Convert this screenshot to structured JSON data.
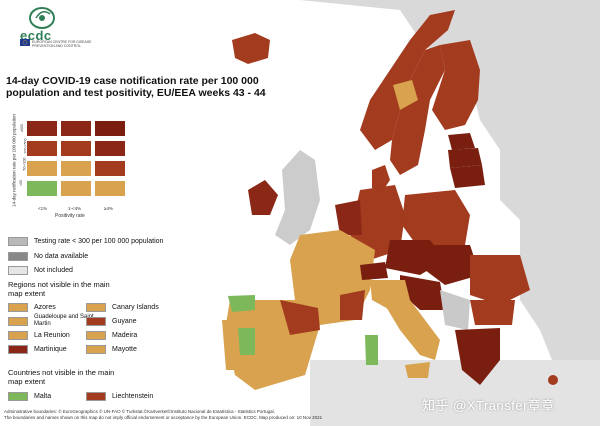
{
  "logo": {
    "name": "ecdc",
    "subtitle": "EUROPEAN CENTRE FOR DISEASE PREVENTION AND CONTROL"
  },
  "title": "14-day COVID-19 case notification rate per 100 000 population and test positivity, EU/EEA weeks 43 - 44",
  "matrix": {
    "y_axis_label": "14-day notification rate per 100 000 population",
    "x_axis_label": "Positivity rate",
    "x_ticks": [
      "<1%",
      "1-<4%",
      "≥4%"
    ],
    "y_ticks": [
      "≥500",
      "200-<500",
      "50-<200",
      "<50"
    ],
    "colors": [
      [
        "#8b2716",
        "#8b2716",
        "#7a1f10"
      ],
      [
        "#a33b1e",
        "#a33b1e",
        "#8b2716"
      ],
      [
        "#d8a24e",
        "#d8a24e",
        "#a33b1e"
      ],
      [
        "#7db85a",
        "#d8a24e",
        "#d8a24e"
      ]
    ]
  },
  "legend": {
    "testing_rate": "Testing rate < 300 per 100 000 population",
    "no_data": "No data available",
    "not_included": "Not included",
    "colors": {
      "testing": "#b9b9b9",
      "no_data": "#888888",
      "not_included": "#e6e6e6"
    }
  },
  "regions": {
    "heading": "Regions not visible in the main map extent",
    "items": [
      {
        "label": "Azores",
        "color": "#d8a24e"
      },
      {
        "label": "Canary Islands",
        "color": "#d8a24e"
      },
      {
        "label": "Guadeloupe and Saint Martin",
        "color": "#d8a24e"
      },
      {
        "label": "Guyane",
        "color": "#a33b1e"
      },
      {
        "label": "La Reunion",
        "color": "#d8a24e"
      },
      {
        "label": "Madeira",
        "color": "#d8a24e"
      },
      {
        "label": "Martinique",
        "color": "#8b2716"
      },
      {
        "label": "Mayotte",
        "color": "#d8a24e"
      }
    ]
  },
  "countries": {
    "heading": "Countries not visible in the main map extent",
    "items": [
      {
        "label": "Malta",
        "color": "#7db85a"
      },
      {
        "label": "Liechtenstein",
        "color": "#a33b1e"
      }
    ]
  },
  "footer": {
    "line1": "Administrative boundaries: © EuroGeographics © UN-FAO © Turkstat.©Kartverket©Instituto Nacional de Estatística - Statistics Portugal.",
    "line2": "The boundaries and names shown on this map do not imply official endorsement or acceptance by the European Union. ECDC. Map produced on: 10 Nov 2021"
  },
  "watermark": "知乎 @XTransfer章章",
  "map_colors": {
    "dark": "#7a1f10",
    "red": "#a33b1e",
    "orange": "#d8a24e",
    "green": "#7db85a",
    "gray": "#cfcfcf",
    "sea": "#ffffff"
  }
}
